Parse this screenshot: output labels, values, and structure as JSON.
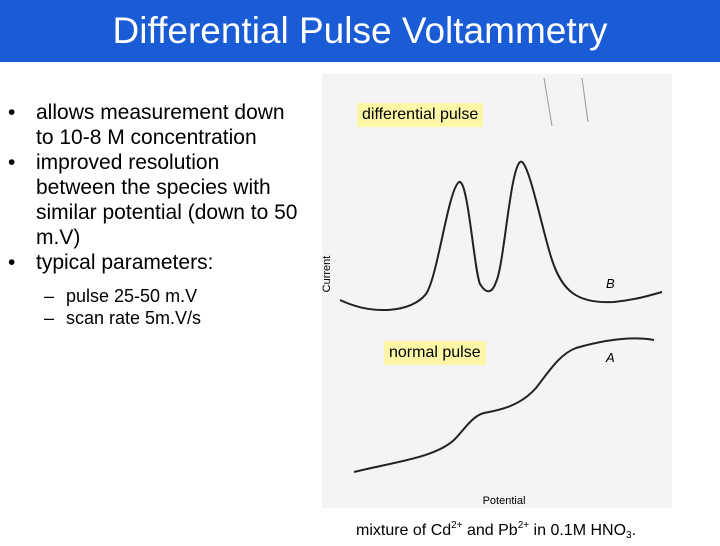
{
  "title": "Differential Pulse Voltammetry",
  "bullets": {
    "items": [
      "allows measurement down to 10-8 M concentration",
      "improved resolution between the species with similar potential (down to 50 m.V)",
      "typical parameters:"
    ],
    "sub_items": [
      "pulse 25-50 m.V",
      "scan rate 5m.V/s"
    ]
  },
  "figure": {
    "axis_y_label": "Current",
    "axis_x_label": "Potential",
    "curve_b_letter": "B",
    "curve_a_letter": "A",
    "label_differential": "differential pulse",
    "label_normal": "normal pulse"
  },
  "caption": {
    "prefix": "mixture of Cd",
    "cd_charge": "2+",
    "middle": " and Pb",
    "pb_charge": "2+",
    "suffix_main": " in 0.1M HNO",
    "hno3_subscript": "3",
    "end": "."
  },
  "colors": {
    "title_bar": "#1a5cd6",
    "label_highlight": "#fbf7a6"
  }
}
